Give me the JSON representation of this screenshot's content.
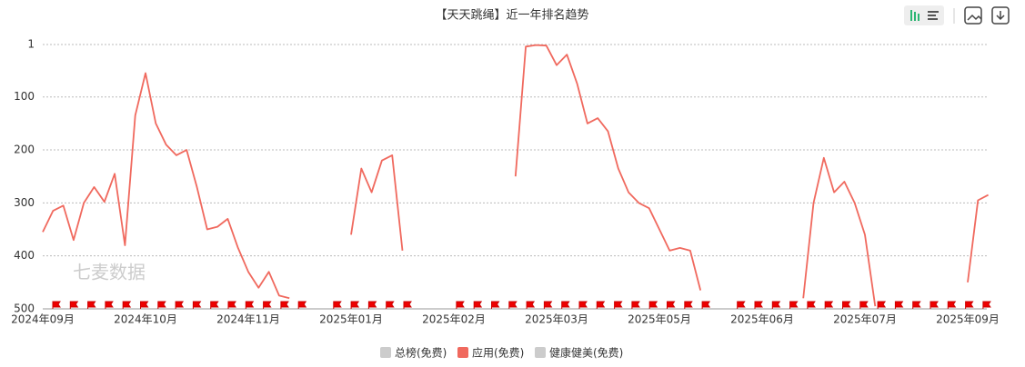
{
  "chart_data": {
    "type": "line",
    "title": "【天天跳绳】近一年排名趋势",
    "watermark": "七麦数据",
    "categories": [
      "2024年09月",
      null,
      null,
      null,
      null,
      null,
      null,
      null,
      null,
      null,
      "2024年10月",
      null,
      null,
      null,
      null,
      null,
      null,
      null,
      null,
      null,
      "2024年11月",
      null,
      null,
      null,
      null,
      null,
      null,
      null,
      null,
      null,
      "2025年01月",
      null,
      null,
      null,
      null,
      null,
      null,
      null,
      null,
      null,
      "2025年02月",
      null,
      null,
      null,
      null,
      null,
      null,
      null,
      null,
      null,
      "2025年03月",
      null,
      null,
      null,
      null,
      null,
      null,
      null,
      null,
      null,
      "2025年05月",
      null,
      null,
      null,
      null,
      null,
      null,
      null,
      null,
      null,
      "2025年06月",
      null,
      null,
      null,
      null,
      null,
      null,
      null,
      null,
      null,
      "2025年07月",
      null,
      null,
      null,
      null,
      null,
      null,
      null,
      null,
      null,
      "2025年09月",
      null,
      null
    ],
    "series": [
      {
        "name": "应用(免费)",
        "color": "#f0695e",
        "values": [
          355,
          315,
          305,
          370,
          300,
          270,
          298,
          245,
          380,
          135,
          55,
          150,
          190,
          210,
          200,
          270,
          350,
          345,
          330,
          385,
          430,
          460,
          430,
          475,
          480,
          null,
          null,
          null,
          null,
          null,
          360,
          235,
          280,
          220,
          210,
          390,
          null,
          null,
          null,
          null,
          null,
          null,
          null,
          null,
          null,
          null,
          250,
          5,
          2,
          3,
          40,
          20,
          75,
          150,
          140,
          165,
          235,
          280,
          300,
          310,
          350,
          390,
          385,
          390,
          465,
          null,
          null,
          null,
          null,
          null,
          null,
          null,
          null,
          null,
          480,
          300,
          215,
          280,
          260,
          300,
          360,
          495,
          null,
          null,
          null,
          null,
          null,
          null,
          null,
          null,
          450,
          295,
          285
        ]
      }
    ],
    "legend": [
      {
        "name": "总榜(免费)",
        "color": "#cccccc"
      },
      {
        "name": "应用(免费)",
        "color": "#f0695e"
      },
      {
        "name": "健康健美(免费)",
        "color": "#cccccc"
      }
    ],
    "ylim": [
      1,
      500
    ],
    "yticks": [
      1,
      100,
      200,
      300,
      400,
      500
    ],
    "y_inverted": true,
    "grid": true
  }
}
